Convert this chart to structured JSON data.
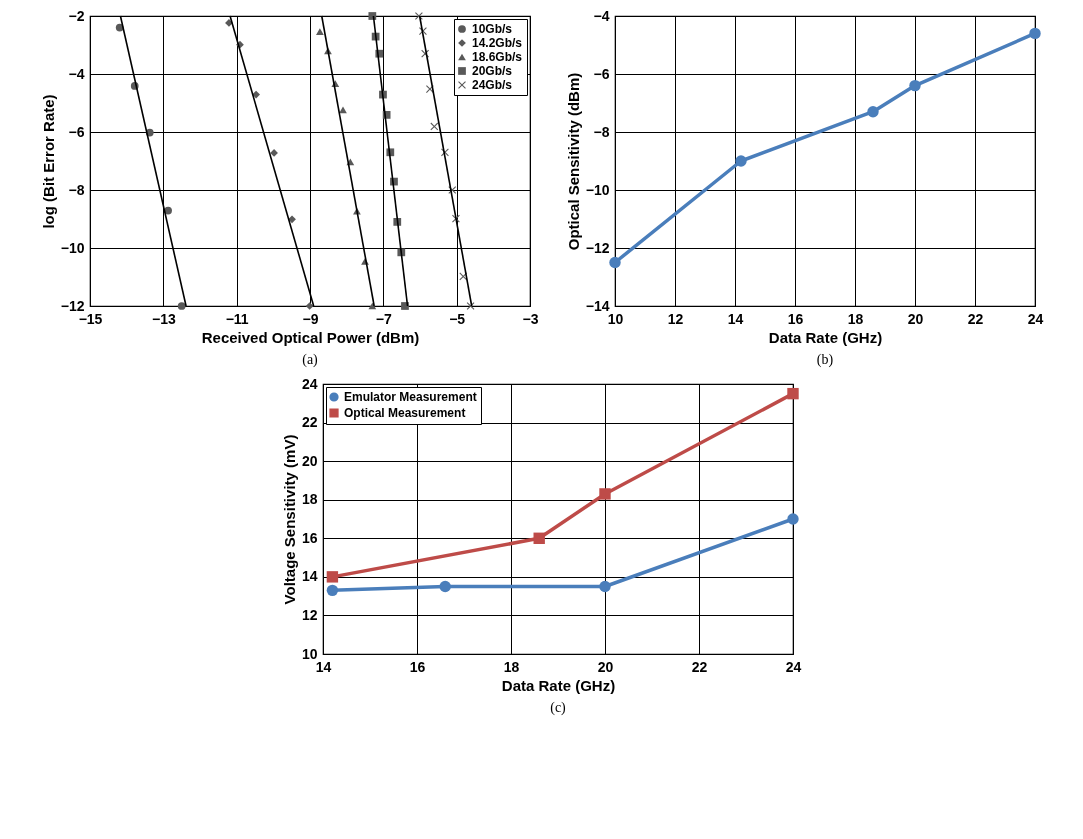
{
  "chart_data": [
    {
      "type": "scatter",
      "xlabel": "Received Optical Power (dBm)",
      "ylabel": "log (Bit Error Rate)",
      "annotations": [
        "(a)"
      ],
      "xlim": [
        -15,
        -3
      ],
      "xticks": [
        -15,
        -13,
        -11,
        -9,
        -7,
        -5,
        -3
      ],
      "ylim": [
        -12,
        -2
      ],
      "yticks": [
        -12,
        -10,
        -8,
        -6,
        -4,
        -2
      ],
      "grid": true,
      "legend": "top right",
      "series": [
        {
          "name": "10Gb/s",
          "color": "#595959",
          "marker": "circle",
          "x": [
            -14.19,
            -13.78,
            -13.37,
            -12.87,
            -12.5
          ],
          "values": [
            -2.4,
            -4.41,
            -6.02,
            -8.71,
            -12
          ]
        },
        {
          "name": "14.2Gb/s",
          "color": "#595959",
          "marker": "diamond",
          "x": [
            -11.21,
            -10.91,
            -10.47,
            -9.98,
            -9.49,
            -9.01
          ],
          "values": [
            -2.24,
            -2.99,
            -4.71,
            -6.72,
            -9.01,
            -12
          ]
        },
        {
          "name": "18.6Gb/s",
          "color": "#595959",
          "marker": "triangle",
          "x": [
            -8.73,
            -8.51,
            -8.31,
            -8.1,
            -7.9,
            -7.72,
            -7.5,
            -7.3
          ],
          "values": [
            -2.54,
            -3.2,
            -4.33,
            -5.24,
            -7.03,
            -8.73,
            -10.46,
            -12
          ]
        },
        {
          "name": "20Gb/s",
          "color": "#595959",
          "marker": "square",
          "x": [
            -7.3,
            -7.21,
            -7.11,
            -7.01,
            -6.91,
            -6.81,
            -6.71,
            -6.62,
            -6.51,
            -6.41
          ],
          "values": [
            -2,
            -2.71,
            -3.3,
            -4.71,
            -5.41,
            -6.7,
            -7.71,
            -9.1,
            -10.15,
            -12
          ]
        },
        {
          "name": "24Gb/s",
          "color": "#595959",
          "marker": "cross",
          "x": [
            -6.03,
            -5.92,
            -5.86,
            -5.73,
            -5.61,
            -5.32,
            -5.12,
            -5.02,
            -4.82,
            -4.62
          ],
          "values": [
            -2,
            -2.52,
            -3.3,
            -4.52,
            -5.81,
            -6.7,
            -8,
            -8.99,
            -10.98,
            -12
          ]
        },
        {
          "type": "line",
          "color": "#000000",
          "marker": "none",
          "x": [
            -14.17,
            -12.38
          ],
          "values": [
            -2,
            -12
          ]
        },
        {
          "type": "line",
          "color": "#000000",
          "marker": "none",
          "x": [
            -11.18,
            -8.9
          ],
          "values": [
            -2,
            -12
          ]
        },
        {
          "type": "line",
          "color": "#000000",
          "marker": "none",
          "x": [
            -8.68,
            -7.25
          ],
          "values": [
            -2,
            -12
          ]
        },
        {
          "type": "line",
          "color": "#000000",
          "marker": "none",
          "x": [
            -7.27,
            -6.34
          ],
          "values": [
            -2,
            -12
          ]
        },
        {
          "type": "line",
          "color": "#000000",
          "marker": "none",
          "x": [
            -6.01,
            -4.59
          ],
          "values": [
            -2,
            -12
          ]
        }
      ]
    },
    {
      "type": "line",
      "xlabel": "Data Rate (GHz)",
      "ylabel": "Optical Sensitivity (dBm)",
      "annotations": [
        "(b)"
      ],
      "xlim": [
        10,
        24
      ],
      "xticks": [
        10,
        12,
        14,
        16,
        18,
        20,
        22,
        24
      ],
      "ylim": [
        -14,
        -4
      ],
      "yticks": [
        -14,
        -12,
        -10,
        -8,
        -6,
        -4
      ],
      "grid": true,
      "marker": "circle",
      "series": [
        {
          "color": "#4a7ebb",
          "x": [
            10,
            14.2,
            18.6,
            20,
            24
          ],
          "values": [
            -12.5,
            -9.0,
            -7.3,
            -6.4,
            -4.6
          ]
        }
      ]
    },
    {
      "type": "line",
      "xlabel": "Data Rate (GHz)",
      "ylabel": "Voltage Sensitivity (mV)",
      "annotations": [
        "(c)"
      ],
      "xlim": [
        14,
        24
      ],
      "xticks": [
        14,
        16,
        18,
        20,
        22,
        24
      ],
      "ylim": [
        10,
        24
      ],
      "yticks": [
        10,
        12,
        14,
        16,
        18,
        20,
        22,
        24
      ],
      "grid": true,
      "legend": "top left",
      "series": [
        {
          "name": "Emulator Measurement",
          "color": "#4a7ebb",
          "marker": "circle",
          "x": [
            14.2,
            16.6,
            20,
            24
          ],
          "values": [
            13.3,
            13.5,
            13.5,
            17
          ]
        },
        {
          "name": "Optical Measurement",
          "color": "#be4b48",
          "marker": "square",
          "x": [
            14.2,
            18.6,
            20,
            24
          ],
          "values": [
            14.0,
            16.0,
            18.3,
            23.5
          ]
        }
      ]
    }
  ]
}
